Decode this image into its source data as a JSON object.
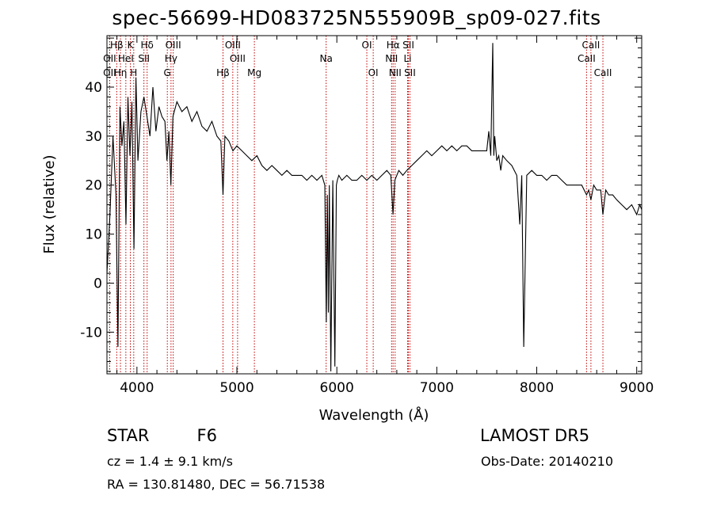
{
  "title": "spec-56699-HD083725N555909B_sp09-027.fits",
  "info": {
    "class": "STAR",
    "subclass": "F6",
    "survey": "LAMOST DR5",
    "cz": "cz = 1.4 ± 9.1 km/s",
    "obs_date": "Obs-Date: 20140210",
    "radec": "RA = 130.81480, DEC =  56.71538"
  },
  "colors": {
    "spectrum": "#000000",
    "line_marker": "#c00000",
    "axis": "#000000"
  },
  "chart_data": {
    "type": "line",
    "title": "spec-56699-HD083725N555909B_sp09-027.fits",
    "xlabel": "Wavelength (Å)",
    "ylabel": "Flux (relative)",
    "xlim": [
      3700,
      9050
    ],
    "ylim": [
      -18.5,
      50.5
    ],
    "xticks": [
      4000,
      5000,
      6000,
      7000,
      8000,
      9000
    ],
    "yticks": [
      -10,
      0,
      10,
      20,
      30,
      40
    ],
    "grid": false,
    "legend": "none",
    "series": [
      {
        "x": [
          3700,
          3730,
          3760,
          3790,
          3810,
          3830,
          3850,
          3870,
          3890,
          3910,
          3930,
          3950,
          3970,
          3990,
          4010,
          4040,
          4070,
          4100,
          4130,
          4160,
          4190,
          4220,
          4250,
          4280,
          4300,
          4320,
          4340,
          4360,
          4400,
          4450,
          4500,
          4550,
          4600,
          4650,
          4700,
          4750,
          4800,
          4840,
          4861,
          4880,
          4920,
          4960,
          5000,
          5050,
          5100,
          5150,
          5200,
          5250,
          5300,
          5350,
          5400,
          5450,
          5500,
          5550,
          5600,
          5650,
          5700,
          5750,
          5800,
          5850,
          5880,
          5895,
          5905,
          5915,
          5925,
          5940,
          5960,
          5980,
          5995,
          6005,
          6020,
          6050,
          6100,
          6150,
          6200,
          6250,
          6300,
          6350,
          6400,
          6450,
          6500,
          6540,
          6562,
          6580,
          6620,
          6660,
          6700,
          6750,
          6800,
          6850,
          6900,
          6950,
          7000,
          7050,
          7100,
          7150,
          7200,
          7250,
          7300,
          7350,
          7400,
          7450,
          7500,
          7520,
          7540,
          7560,
          7570,
          7580,
          7600,
          7620,
          7640,
          7660,
          7700,
          7750,
          7800,
          7830,
          7850,
          7870,
          7900,
          7950,
          8000,
          8050,
          8100,
          8150,
          8200,
          8250,
          8300,
          8350,
          8400,
          8450,
          8498,
          8520,
          8542,
          8570,
          8600,
          8640,
          8662,
          8690,
          8720,
          8760,
          8800,
          8850,
          8900,
          8950,
          9000,
          9030,
          9050
        ],
        "y": [
          2,
          14,
          30,
          18,
          -13,
          36,
          28,
          33,
          12,
          38,
          26,
          37,
          7,
          42,
          25,
          35,
          38,
          34,
          30,
          40,
          31,
          36,
          34,
          33,
          25,
          31,
          20,
          34,
          37,
          35,
          36,
          33,
          35,
          32,
          31,
          33,
          30,
          29,
          18,
          30,
          29,
          27,
          28,
          27,
          26,
          25,
          26,
          24,
          23,
          24,
          23,
          22,
          23,
          22,
          22,
          22,
          21,
          22,
          21,
          22,
          20,
          -8,
          18,
          -6,
          20,
          -18,
          21,
          -17,
          20,
          21,
          22,
          21,
          22,
          21,
          21,
          22,
          21,
          22,
          21,
          22,
          23,
          22,
          14,
          21,
          23,
          22,
          23,
          24,
          25,
          26,
          27,
          26,
          27,
          28,
          27,
          28,
          27,
          28,
          28,
          27,
          27,
          27,
          27,
          31,
          26,
          49,
          26,
          30,
          25,
          26,
          23,
          26,
          25,
          24,
          22,
          12,
          22,
          -13,
          22,
          23,
          22,
          22,
          21,
          22,
          22,
          21,
          20,
          20,
          20,
          20,
          18,
          19,
          17,
          20,
          19,
          19,
          14,
          19,
          18,
          18,
          17,
          16,
          15,
          16,
          14,
          16,
          15
        ]
      }
    ],
    "line_markers": [
      {
        "label": "Hβ",
        "x": 3798,
        "row": 1
      },
      {
        "label": "K",
        "x": 3934,
        "row": 1
      },
      {
        "label": "Hδ",
        "x": 4102,
        "row": 1
      },
      {
        "label": "OIII",
        "x": 4363,
        "row": 1
      },
      {
        "label": "OIII",
        "x": 4959,
        "row": 1
      },
      {
        "label": "OI",
        "x": 6300,
        "row": 1
      },
      {
        "label": "Hα",
        "x": 6563,
        "row": 1
      },
      {
        "label": "SII",
        "x": 6716,
        "row": 1
      },
      {
        "label": "CaII",
        "x": 8542,
        "row": 1
      },
      {
        "label": "OII",
        "x": 3727,
        "row": 2
      },
      {
        "label": "HeI",
        "x": 3889,
        "row": 2
      },
      {
        "label": "SII",
        "x": 4070,
        "row": 2
      },
      {
        "label": "Hγ",
        "x": 4341,
        "row": 2
      },
      {
        "label": "OIII",
        "x": 5007,
        "row": 2
      },
      {
        "label": "Na",
        "x": 5893,
        "row": 2
      },
      {
        "label": "NII",
        "x": 6548,
        "row": 2
      },
      {
        "label": "Li",
        "x": 6708,
        "row": 2
      },
      {
        "label": "CaII",
        "x": 8498,
        "row": 2
      },
      {
        "label": "OII",
        "x": 3727,
        "row": 3
      },
      {
        "label": "Hη",
        "x": 3835,
        "row": 3
      },
      {
        "label": "H",
        "x": 3968,
        "row": 3
      },
      {
        "label": "G",
        "x": 4304,
        "row": 3
      },
      {
        "label": "Hβ",
        "x": 4861,
        "row": 3
      },
      {
        "label": "Mg",
        "x": 5175,
        "row": 3
      },
      {
        "label": "OI",
        "x": 6364,
        "row": 3
      },
      {
        "label": "NII",
        "x": 6583,
        "row": 3
      },
      {
        "label": "SII",
        "x": 6731,
        "row": 3
      },
      {
        "label": "CaII",
        "x": 8662,
        "row": 3
      }
    ]
  }
}
